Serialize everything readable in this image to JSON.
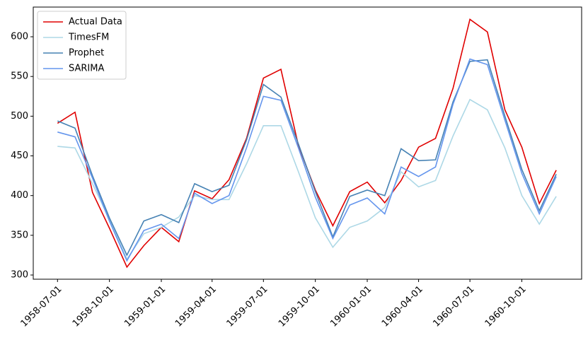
{
  "chart_data": {
    "type": "line",
    "x": [
      "1958-07-01",
      "1958-08-01",
      "1958-09-01",
      "1958-10-01",
      "1958-11-01",
      "1958-12-01",
      "1959-01-01",
      "1959-02-01",
      "1959-03-01",
      "1959-04-01",
      "1959-05-01",
      "1959-06-01",
      "1959-07-01",
      "1959-08-01",
      "1959-09-01",
      "1959-10-01",
      "1959-11-01",
      "1959-12-01",
      "1960-01-01",
      "1960-02-01",
      "1960-03-01",
      "1960-04-01",
      "1960-05-01",
      "1960-06-01",
      "1960-07-01",
      "1960-08-01",
      "1960-09-01",
      "1960-10-01",
      "1960-11-01",
      "1960-12-01"
    ],
    "series": [
      {
        "name": "Actual Data",
        "color": "#e00000",
        "values": [
          491,
          505,
          404,
          359,
          310,
          337,
          360,
          342,
          406,
          396,
          420,
          472,
          548,
          559,
          463,
          407,
          362,
          405,
          417,
          391,
          419,
          461,
          472,
          535,
          622,
          606,
          508,
          461,
          390,
          432
        ]
      },
      {
        "name": "TimesFM",
        "color": "#add8e6",
        "values": [
          462,
          460,
          415,
          370,
          320,
          352,
          360,
          373,
          400,
          395,
          395,
          440,
          488,
          488,
          430,
          372,
          335,
          360,
          368,
          385,
          430,
          411,
          419,
          475,
          521,
          508,
          460,
          400,
          364,
          399
        ]
      },
      {
        "name": "Prophet",
        "color": "#4682b4",
        "values": [
          494,
          485,
          425,
          372,
          325,
          368,
          376,
          366,
          415,
          405,
          413,
          470,
          540,
          524,
          465,
          405,
          348,
          399,
          407,
          400,
          459,
          444,
          445,
          518,
          569,
          571,
          500,
          433,
          381,
          427
        ]
      },
      {
        "name": "SARIMA",
        "color": "#6495ed",
        "values": [
          480,
          474,
          422,
          368,
          318,
          356,
          364,
          346,
          403,
          390,
          400,
          460,
          525,
          520,
          460,
          398,
          346,
          388,
          397,
          377,
          436,
          424,
          436,
          515,
          572,
          565,
          495,
          428,
          377,
          424
        ]
      }
    ],
    "xlim": [
      "1958-05-19",
      "1961-01-15"
    ],
    "xticks": [
      "1958-07-01",
      "1958-10-01",
      "1959-01-01",
      "1959-04-01",
      "1959-07-01",
      "1959-10-01",
      "1960-01-01",
      "1960-04-01",
      "1960-07-01",
      "1960-10-01"
    ],
    "ylim": [
      294.7,
      637.4
    ],
    "yticks": [
      300,
      350,
      400,
      450,
      500,
      550,
      600
    ],
    "legend": "upper left"
  }
}
